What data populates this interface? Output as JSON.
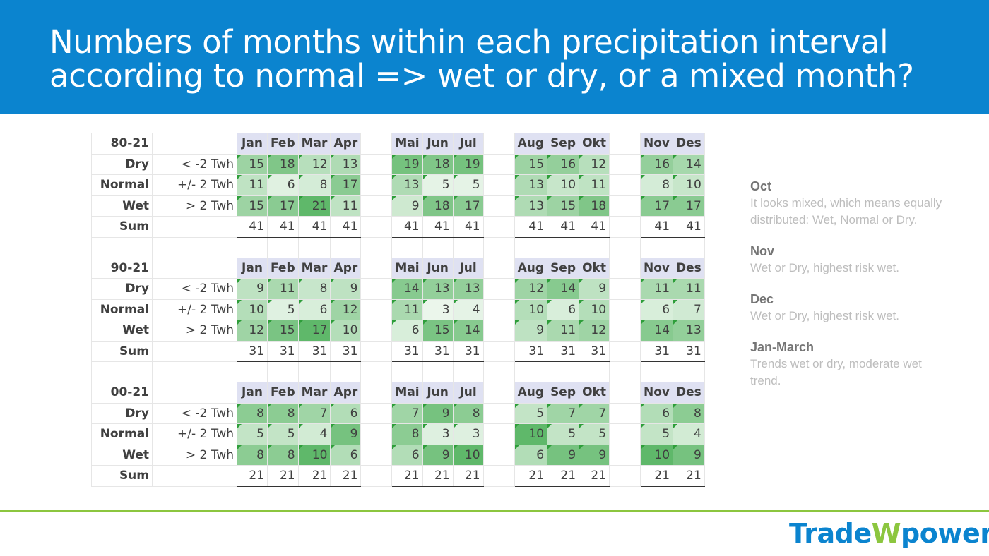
{
  "title_line1": "Numbers of months within each precipitation interval",
  "title_line2": "according to normal => wet or dry, or a mixed month?",
  "months": [
    "Jan",
    "Feb",
    "Mar",
    "Apr",
    "Mai",
    "Jun",
    "Jul",
    "Aug",
    "Sep",
    "Okt",
    "Nov",
    "Des"
  ],
  "row_labels": [
    "Dry",
    "Normal",
    "Wet",
    "Sum"
  ],
  "ranges": [
    "< -2 Twh",
    "+/- 2 Twh",
    "> 2 Twh"
  ],
  "blocks": [
    {
      "period": "80-21",
      "dry": [
        15,
        18,
        12,
        13,
        19,
        18,
        19,
        15,
        16,
        12,
        16,
        14
      ],
      "normal": [
        11,
        6,
        8,
        17,
        13,
        5,
        5,
        13,
        10,
        11,
        8,
        10
      ],
      "wet": [
        15,
        17,
        21,
        11,
        9,
        18,
        17,
        13,
        15,
        18,
        17,
        17
      ],
      "sum": [
        41,
        41,
        41,
        41,
        41,
        41,
        41,
        41,
        41,
        41,
        41,
        41
      ]
    },
    {
      "period": "90-21",
      "dry": [
        9,
        11,
        8,
        9,
        14,
        13,
        13,
        12,
        14,
        9,
        11,
        11
      ],
      "normal": [
        10,
        5,
        6,
        12,
        11,
        3,
        4,
        10,
        6,
        10,
        6,
        7
      ],
      "wet": [
        12,
        15,
        17,
        10,
        6,
        15,
        14,
        9,
        11,
        12,
        14,
        13
      ],
      "sum": [
        31,
        31,
        31,
        31,
        31,
        31,
        31,
        31,
        31,
        31,
        31,
        31
      ]
    },
    {
      "period": "00-21",
      "dry": [
        8,
        8,
        7,
        6,
        7,
        9,
        8,
        5,
        7,
        7,
        6,
        8
      ],
      "normal": [
        5,
        5,
        4,
        9,
        8,
        3,
        3,
        10,
        5,
        5,
        5,
        4
      ],
      "wet": [
        8,
        8,
        10,
        6,
        6,
        9,
        10,
        6,
        9,
        9,
        10,
        9
      ],
      "sum": [
        21,
        21,
        21,
        21,
        21,
        21,
        21,
        21,
        21,
        21,
        21,
        21
      ]
    }
  ],
  "notes": [
    {
      "heading": "Oct",
      "body": "It looks mixed, which means equally distributed: Wet, Normal or Dry."
    },
    {
      "heading": "Nov",
      "body": "Wet or Dry, highest risk wet."
    },
    {
      "heading": "Dec",
      "body": "Wet or Dry, highest risk wet."
    },
    {
      "heading": "Jan-March",
      "body": "Trends wet or dry, moderate wet trend."
    }
  ],
  "logo_part1": "Trade",
  "logo_part2": "W",
  "logo_part3": "power",
  "colors": {
    "header": "#0b84cf",
    "accent_green": "#8cc63f",
    "cell_green_dark": "#5fb86a",
    "cell_green_light": "#f4faf4"
  }
}
